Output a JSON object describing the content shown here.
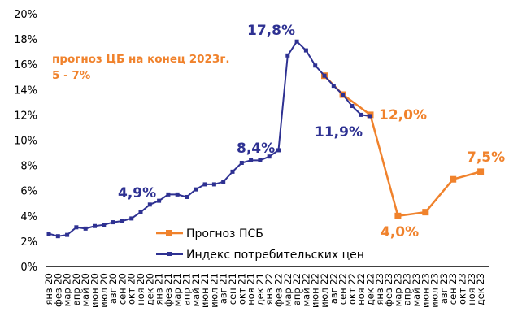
{
  "chart_data": {
    "type": "line",
    "title": "",
    "xlabel": "",
    "ylabel": "",
    "ylim": [
      0,
      20
    ],
    "yticks": [
      "0%",
      "2%",
      "4%",
      "6%",
      "8%",
      "10%",
      "12%",
      "14%",
      "16%",
      "18%",
      "20%"
    ],
    "grid": false,
    "legend_position": "bottom-center",
    "categories": [
      "янв 20",
      "фев 20",
      "мар 20",
      "апр 20",
      "май 20",
      "июн 20",
      "июл 20",
      "авг 20",
      "сен 20",
      "окт 20",
      "ноя 20",
      "дек 20",
      "янв 21",
      "фев 21",
      "мар 21",
      "апр 21",
      "май 21",
      "июн 21",
      "июл 21",
      "авг 21",
      "сен 21",
      "окт 21",
      "ноя 21",
      "дек 21",
      "янв 22",
      "фев 22",
      "мар 22",
      "апр 22",
      "май 22",
      "июн 22",
      "июл 22",
      "авг 22",
      "сен 22",
      "окт 22",
      "ноя 22",
      "дек 22",
      "янв 23",
      "фев 23",
      "мар 23",
      "апр 23",
      "май 23",
      "июн 23",
      "июл 23",
      "авг 23",
      "сен 23",
      "окт 23",
      "ноя 23",
      "дек 23"
    ],
    "series": [
      {
        "name": "Прогноз ПСБ",
        "color": "#f0822c",
        "marker": "square",
        "points": [
          [
            "июл 22",
            15.1
          ],
          [
            "сен 22",
            13.6
          ],
          [
            "дек 22",
            12.0
          ],
          [
            "мар 23",
            4.0
          ],
          [
            "июн 23",
            4.3
          ],
          [
            "сен 23",
            6.9
          ],
          [
            "дек 23",
            7.5
          ]
        ]
      },
      {
        "name": "Индекс потребительских цен",
        "color": "#2e3192",
        "marker": "small-square",
        "points": [
          [
            "янв 20",
            2.6
          ],
          [
            "фев 20",
            2.4
          ],
          [
            "мар 20",
            2.5
          ],
          [
            "апр 20",
            3.1
          ],
          [
            "май 20",
            3.0
          ],
          [
            "июн 20",
            3.2
          ],
          [
            "июл 20",
            3.3
          ],
          [
            "авг 20",
            3.5
          ],
          [
            "сен 20",
            3.6
          ],
          [
            "окт 20",
            3.8
          ],
          [
            "ноя 20",
            4.3
          ],
          [
            "дек 20",
            4.9
          ],
          [
            "янв 21",
            5.2
          ],
          [
            "фев 21",
            5.7
          ],
          [
            "мар 21",
            5.7
          ],
          [
            "апр 21",
            5.5
          ],
          [
            "май 21",
            6.1
          ],
          [
            "июн 21",
            6.5
          ],
          [
            "июл 21",
            6.5
          ],
          [
            "авг 21",
            6.7
          ],
          [
            "сен 21",
            7.5
          ],
          [
            "окт 21",
            8.2
          ],
          [
            "ноя 21",
            8.4
          ],
          [
            "дек 21",
            8.4
          ],
          [
            "янв 22",
            8.7
          ],
          [
            "фев 22",
            9.2
          ],
          [
            "мар 22",
            16.7
          ],
          [
            "апр 22",
            17.8
          ],
          [
            "май 22",
            17.1
          ],
          [
            "июн 22",
            15.9
          ],
          [
            "июл 22",
            15.1
          ],
          [
            "авг 22",
            14.3
          ],
          [
            "сен 22",
            13.6
          ],
          [
            "окт 22",
            12.7
          ],
          [
            "ноя 22",
            12.0
          ],
          [
            "дек 22",
            11.9
          ]
        ]
      }
    ],
    "annotations": [
      {
        "text": "17,8%",
        "color": "#2e3192"
      },
      {
        "text": "8,4%",
        "color": "#2e3192"
      },
      {
        "text": "4,9%",
        "color": "#2e3192"
      },
      {
        "text": "11,9%",
        "color": "#2e3192"
      },
      {
        "text": "12,0%",
        "color": "#f0822c"
      },
      {
        "text": "4,0%",
        "color": "#f0822c"
      },
      {
        "text": "7,5%",
        "color": "#f0822c"
      },
      {
        "text": "прогноз ЦБ на конец 2023г.",
        "color": "#f0822c"
      },
      {
        "text": "5 - 7%",
        "color": "#f0822c"
      }
    ]
  }
}
